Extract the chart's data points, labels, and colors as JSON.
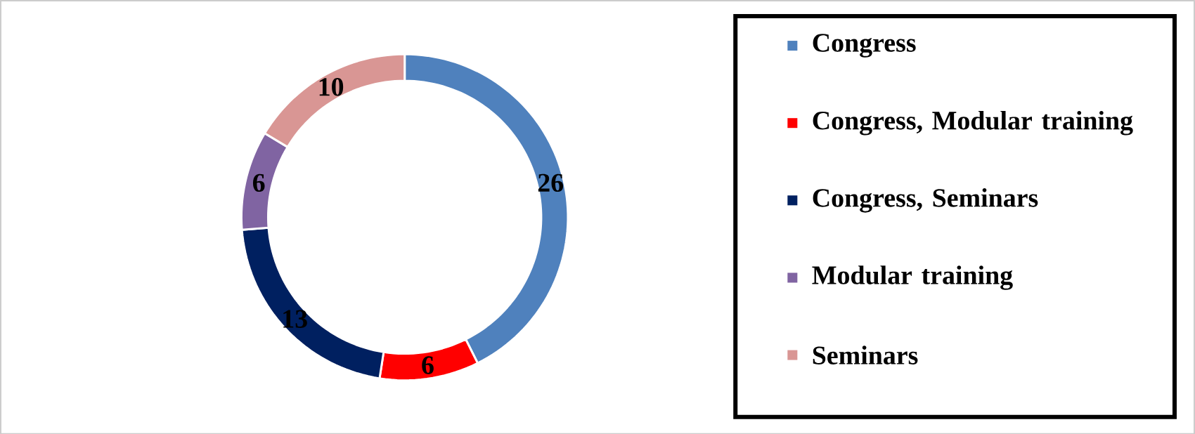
{
  "chart_data": {
    "type": "donut",
    "categories": [
      "Congress",
      "Congress, Modular training",
      "Congress, Seminars",
      "Modular training",
      "Seminars"
    ],
    "values": [
      26,
      6,
      13,
      6,
      10
    ],
    "colors": [
      "#4f81bd",
      "#ff0000",
      "#002060",
      "#8064a2",
      "#d99694"
    ],
    "data_labels": true,
    "legend": "right"
  }
}
